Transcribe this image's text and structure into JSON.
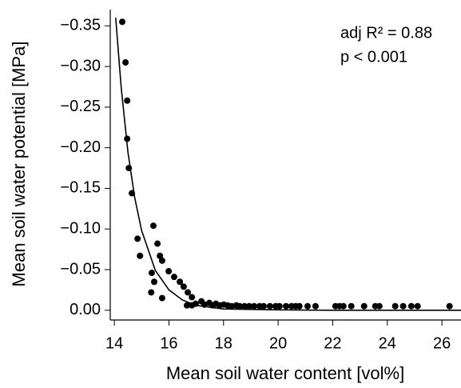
{
  "chart_data": {
    "type": "scatter",
    "x_label": "Mean soil water content [vol%]",
    "y_label": "Mean soil water potential [MPa]",
    "annotations": [
      "adj R² = 0.88",
      "p < 0.001"
    ],
    "color": "#000000",
    "x": [
      14.29,
      14.41,
      14.47,
      14.47,
      14.53,
      14.64,
      14.85,
      14.94,
      15.43,
      15.37,
      15.46,
      15.35,
      15.58,
      15.67,
      15.75,
      15.75,
      15.99,
      16.19,
      16.4,
      16.54,
      16.69,
      16.84,
      16.66,
      16.84,
      16.98,
      17.19,
      17.3,
      17.48,
      17.6,
      17.72,
      17.86,
      18.01,
      18.15,
      18.3,
      18.47,
      18.59,
      18.77,
      18.94,
      19.12,
      19.32,
      19.47,
      19.7,
      19.91,
      20.05,
      20.29,
      20.49,
      20.64,
      20.78,
      21.08,
      21.37,
      22.1,
      22.25,
      22.39,
      22.68,
      23.15,
      23.56,
      23.71,
      24.29,
      24.58,
      24.88,
      25.11,
      26.28
    ],
    "values": [
      -0.355,
      -0.305,
      -0.258,
      -0.211,
      -0.175,
      -0.144,
      -0.088,
      -0.067,
      -0.104,
      -0.046,
      -0.035,
      -0.022,
      -0.082,
      -0.067,
      -0.061,
      -0.015,
      -0.048,
      -0.041,
      -0.035,
      -0.029,
      -0.022,
      -0.016,
      -0.006,
      -0.006,
      -0.008,
      -0.011,
      -0.007,
      -0.009,
      -0.006,
      -0.008,
      -0.006,
      -0.007,
      -0.006,
      -0.005,
      -0.006,
      -0.005,
      -0.005,
      -0.005,
      -0.005,
      -0.005,
      -0.005,
      -0.005,
      -0.005,
      -0.005,
      -0.005,
      -0.005,
      -0.005,
      -0.005,
      -0.005,
      -0.005,
      -0.005,
      -0.005,
      -0.005,
      -0.005,
      -0.005,
      -0.005,
      -0.005,
      -0.005,
      -0.005,
      -0.005,
      -0.005,
      -0.005
    ],
    "fit": {
      "x": [
        14.05,
        14.25,
        14.5,
        14.75,
        15,
        15.5,
        16,
        16.5,
        17,
        18,
        20,
        22,
        24,
        26.7
      ],
      "values": [
        -0.36,
        -0.274,
        -0.194,
        -0.138,
        -0.098,
        -0.049,
        -0.025,
        -0.0125,
        -0.006,
        -0.0016,
        -0.0005,
        0,
        0,
        0
      ]
    },
    "xlim": [
      13.85,
      26.7
    ],
    "ylim": [
      0.012,
      -0.37
    ],
    "xticks": [
      14,
      16,
      18,
      20,
      22,
      24,
      26
    ],
    "yticks": [
      {
        "value": -0.35,
        "label": "−0.35"
      },
      {
        "value": -0.3,
        "label": "−0.30"
      },
      {
        "value": -0.25,
        "label": "−0.25"
      },
      {
        "value": -0.2,
        "label": "−0.20"
      },
      {
        "value": -0.15,
        "label": "−0.15"
      },
      {
        "value": -0.1,
        "label": "−0.10"
      },
      {
        "value": -0.05,
        "label": "−0.05"
      },
      {
        "value": 0,
        "label": "0.00"
      }
    ]
  }
}
